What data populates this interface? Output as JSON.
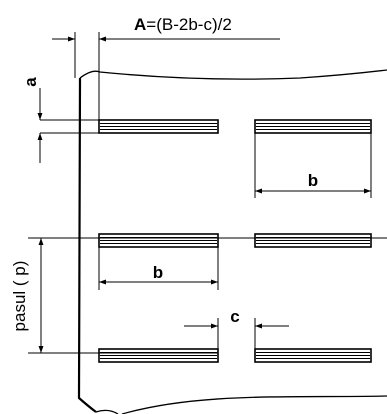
{
  "labels": {
    "formula_bold": "A",
    "formula_rest": "=(B-2b-c)/2",
    "a": "a",
    "b_top": "b",
    "b_bottom": "b",
    "c": "c",
    "pitch": "pasul ( p)"
  },
  "colors": {
    "ink": "#000000",
    "background": "#ffffff"
  }
}
